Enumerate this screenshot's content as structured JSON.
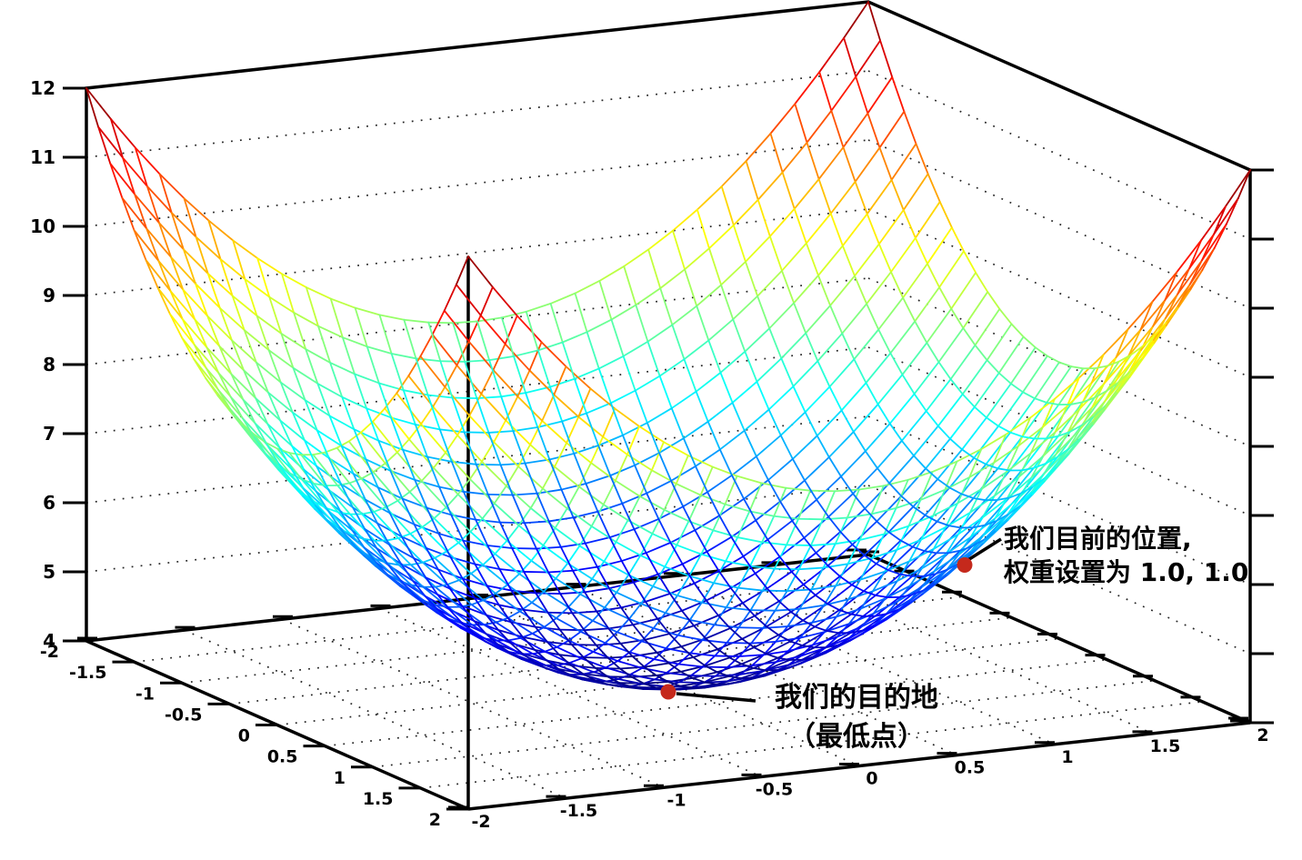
{
  "chart_data": {
    "type": "surface",
    "title": "",
    "xlabel": "",
    "ylabel": "",
    "zlabel": "",
    "z_expression": "x*x + y*y + 4",
    "x_range": [
      -2,
      2
    ],
    "y_range": [
      -2,
      2
    ],
    "z_range": [
      4,
      12
    ],
    "x_ticks": [
      -2,
      -1.5,
      -1,
      -0.5,
      0,
      0.5,
      1,
      1.5,
      2
    ],
    "y_ticks": [
      -2,
      -1.5,
      -1,
      -0.5,
      0,
      0.5,
      1,
      1.5,
      2
    ],
    "z_ticks": [
      4,
      5,
      6,
      7,
      8,
      9,
      10,
      11,
      12
    ],
    "mesh_divisions": 32,
    "colormap": "jet",
    "wall_grid": "dotted",
    "floor_grid": "dotted",
    "legend": "none",
    "axis_color": "#000000",
    "marker_color": "#c5291c",
    "points": [
      {
        "x": 1.0,
        "y": 1.0,
        "z": 6.0,
        "label_line1": "我们目前的位置,",
        "label_line2": "权重设置为 1.0, 1.0"
      },
      {
        "x": 0.0,
        "y": 0.0,
        "z": 4.0,
        "label_line1": "我们的目的地",
        "label_line2": "（最低点）"
      }
    ]
  }
}
